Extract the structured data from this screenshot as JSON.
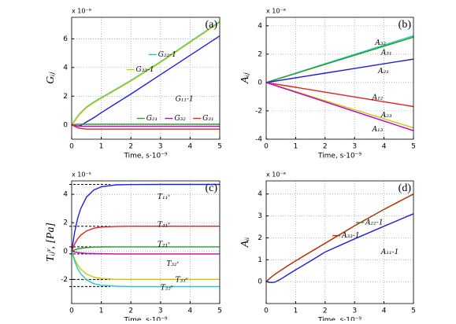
{
  "chart_data": [
    {
      "type": "line",
      "panel_label": "(a)",
      "exponent_label": "x 10⁻⁹",
      "xlabel": "Time,  s·10⁻⁹",
      "ylabel": "Gᵢⱼ",
      "x": [
        0,
        0.1,
        0.2,
        0.3,
        0.5,
        0.75,
        1,
        1.5,
        2,
        3,
        4,
        5
      ],
      "xlim": [
        0,
        5
      ],
      "xticks": [
        0,
        1,
        2,
        3,
        4,
        5
      ],
      "ylim": [
        -1,
        7.5
      ],
      "yticks": [
        0,
        2,
        4,
        6
      ],
      "grid": true,
      "series": [
        {
          "name": "G₂₂-1",
          "color": "#1fc8c8",
          "values": [
            0,
            0.3,
            0.6,
            0.85,
            1.25,
            1.6,
            1.9,
            2.5,
            3.1,
            4.4,
            5.8,
            7.2
          ]
        },
        {
          "name": "G₃₃-1",
          "color": "#c8c800",
          "values": [
            0,
            0.25,
            0.55,
            0.8,
            1.2,
            1.55,
            1.85,
            2.45,
            3.05,
            4.35,
            5.75,
            7.15
          ]
        },
        {
          "name": "G₁₁-1",
          "color": "#1f1fe0",
          "values": [
            0,
            -0.05,
            -0.08,
            -0.05,
            0.2,
            0.5,
            0.85,
            1.5,
            2.15,
            3.5,
            4.85,
            6.2
          ]
        },
        {
          "name": "G₂₁",
          "color": "#22a022",
          "values": [
            0,
            0.03,
            0.05,
            0.05,
            0.05,
            0.05,
            0.05,
            0.05,
            0.05,
            0.05,
            0.05,
            0.05
          ]
        },
        {
          "name": "G₃₂",
          "color": "#c000c0",
          "values": [
            0,
            -0.05,
            -0.08,
            -0.1,
            -0.1,
            -0.1,
            -0.1,
            -0.1,
            -0.1,
            -0.1,
            -0.1,
            -0.1
          ]
        },
        {
          "name": "G₃₁",
          "color": "#e82020",
          "values": [
            0,
            -0.1,
            -0.2,
            -0.25,
            -0.3,
            -0.3,
            -0.3,
            -0.3,
            -0.3,
            -0.3,
            -0.3,
            -0.3
          ]
        }
      ]
    },
    {
      "type": "line",
      "panel_label": "(b)",
      "exponent_label": "x 10⁻⁹",
      "xlabel": "Time,  s·10⁻⁹",
      "ylabel": "Aᵢⱼ",
      "x": [
        0,
        1,
        2,
        3,
        4,
        5
      ],
      "xlim": [
        0,
        5
      ],
      "xticks": [
        0,
        1,
        2,
        3,
        4,
        5
      ],
      "ylim": [
        -4,
        4.6
      ],
      "yticks": [
        -4,
        -2,
        0,
        2,
        4
      ],
      "grid": true,
      "series": [
        {
          "name": "A₃₂",
          "color": "#1fc8c8",
          "values": [
            0,
            0.66,
            1.32,
            1.98,
            2.64,
            3.3
          ]
        },
        {
          "name": "A₃₁",
          "color": "#22a022",
          "values": [
            0,
            0.64,
            1.28,
            1.92,
            2.56,
            3.2
          ]
        },
        {
          "name": "A₂₁",
          "color": "#1f1fe0",
          "values": [
            0,
            0.33,
            0.66,
            0.99,
            1.32,
            1.65
          ]
        },
        {
          "name": "A₁₂",
          "color": "#e82020",
          "values": [
            0,
            -0.34,
            -0.68,
            -1.02,
            -1.36,
            -1.7
          ]
        },
        {
          "name": "A₂₃",
          "color": "#c8c800",
          "values": [
            0,
            -0.64,
            -1.28,
            -1.92,
            -2.56,
            -3.2
          ]
        },
        {
          "name": "A₁₃",
          "color": "#c000c0",
          "values": [
            0,
            -0.68,
            -1.36,
            -2.04,
            -2.72,
            -3.4
          ]
        }
      ]
    },
    {
      "type": "line",
      "panel_label": "(c)",
      "exponent_label": "x 10⁻⁵",
      "xlabel": "Time,  s·10⁻⁹",
      "ylabel": "Tᵢⱼᵛ, [Pa]",
      "x": [
        0,
        0.1,
        0.2,
        0.3,
        0.5,
        0.75,
        1,
        1.5,
        2,
        3,
        4,
        5
      ],
      "xlim": [
        0,
        5
      ],
      "xticks": [
        0,
        1,
        2,
        3,
        4,
        5
      ],
      "ylim": [
        -3.7,
        4.95
      ],
      "yticks": [
        -2,
        0,
        2,
        4
      ],
      "grid": true,
      "reference_lines": {
        "color": "#000000",
        "values": [
          4.7,
          1.75,
          0.3,
          -0.2,
          -2,
          -2.5
        ]
      },
      "series": [
        {
          "name": "T₁₁ᵛ",
          "color": "#1f1fe0",
          "values": [
            0,
            1.33,
            2.29,
            2.97,
            3.81,
            4.31,
            4.53,
            4.67,
            4.69,
            4.7,
            4.7,
            4.7
          ]
        },
        {
          "name": "T₃₁ᵛ",
          "color": "#e82020",
          "values": [
            0,
            0.5,
            0.85,
            1.11,
            1.42,
            1.61,
            1.69,
            1.74,
            1.75,
            1.75,
            1.75,
            1.75
          ]
        },
        {
          "name": "T₂₁ᵛ",
          "color": "#22a022",
          "values": [
            0,
            0.08,
            0.15,
            0.19,
            0.24,
            0.28,
            0.29,
            0.3,
            0.3,
            0.3,
            0.3,
            0.3
          ]
        },
        {
          "name": "T₃₂ᵛ",
          "color": "#c000c0",
          "values": [
            0,
            -0.06,
            -0.1,
            -0.13,
            -0.16,
            -0.18,
            -0.19,
            -0.2,
            -0.2,
            -0.2,
            -0.2,
            -0.2
          ]
        },
        {
          "name": "T₃₃ᵛ",
          "color": "#c8c800",
          "values": [
            0,
            -0.57,
            -0.97,
            -1.26,
            -1.62,
            -1.84,
            -1.93,
            -1.99,
            -2,
            -2,
            -2,
            -2
          ]
        },
        {
          "name": "T₂₂ᵛ",
          "color": "#1fc8c8",
          "values": [
            0,
            -0.71,
            -1.22,
            -1.58,
            -2.03,
            -2.3,
            -2.41,
            -2.48,
            -2.5,
            -2.5,
            -2.5,
            -2.5
          ]
        }
      ]
    },
    {
      "type": "line",
      "panel_label": "(d)",
      "exponent_label": "x 10⁻⁹",
      "xlabel": "Time,  s·10⁻⁹",
      "ylabel": "Aᵢᵢ",
      "x": [
        0,
        0.1,
        0.2,
        0.3,
        0.5,
        0.75,
        1,
        1.5,
        2,
        3,
        4,
        5
      ],
      "xlim": [
        0,
        5
      ],
      "xticks": [
        0,
        1,
        2,
        3,
        4,
        5
      ],
      "ylim": [
        -1,
        4.6
      ],
      "yticks": [
        0,
        1,
        2,
        3,
        4
      ],
      "grid": true,
      "series": [
        {
          "name": "A₂₂-1",
          "color": "#22a022",
          "values": [
            0,
            0.12,
            0.24,
            0.34,
            0.52,
            0.74,
            0.95,
            1.35,
            1.75,
            2.55,
            3.3,
            4.0
          ]
        },
        {
          "name": "A₃₃-1",
          "color": "#c03010",
          "values": [
            0,
            0.12,
            0.24,
            0.34,
            0.52,
            0.74,
            0.95,
            1.35,
            1.75,
            2.55,
            3.3,
            4.0
          ]
        },
        {
          "name": "A₁₁-1",
          "color": "#1f1fe0",
          "values": [
            0,
            -0.03,
            -0.04,
            -0.02,
            0.12,
            0.33,
            0.54,
            0.94,
            1.35,
            1.95,
            2.53,
            3.1
          ]
        }
      ]
    }
  ]
}
